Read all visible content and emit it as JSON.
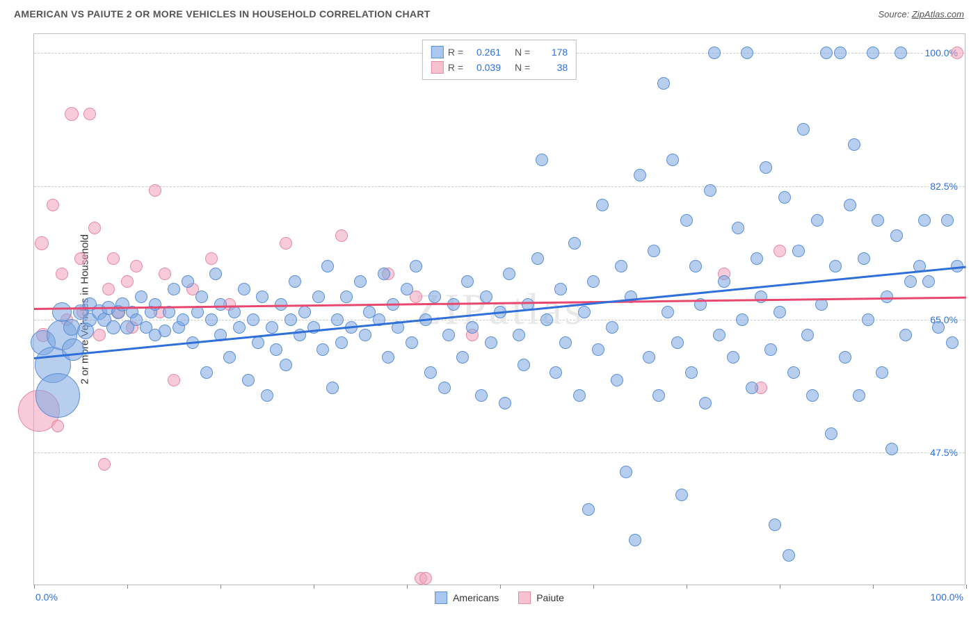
{
  "header": {
    "title": "AMERICAN VS PAIUTE 2 OR MORE VEHICLES IN HOUSEHOLD CORRELATION CHART",
    "source_prefix": "Source: ",
    "source_name": "ZipAtlas.com"
  },
  "watermark": "ZIPatlas",
  "yaxis": {
    "label": "2 or more Vehicles in Household",
    "ticks": [
      {
        "value": 47.5,
        "label": "47.5%"
      },
      {
        "value": 65.0,
        "label": "65.0%"
      },
      {
        "value": 82.5,
        "label": "82.5%"
      },
      {
        "value": 100.0,
        "label": "100.0%"
      }
    ],
    "min": 30.0,
    "max": 102.5
  },
  "xaxis": {
    "min": 0.0,
    "max": 100.0,
    "min_label": "0.0%",
    "max_label": "100.0%",
    "tick_positions": [
      0,
      10,
      20,
      30,
      40,
      50,
      60,
      70,
      80,
      90,
      100
    ]
  },
  "legend_top": {
    "rows": [
      {
        "swatch_fill": "#a9c7ef",
        "swatch_border": "#5b8fd6",
        "r_label": "R =",
        "r_value": "0.261",
        "n_label": "N =",
        "n_value": "178"
      },
      {
        "swatch_fill": "#f7c2cf",
        "swatch_border": "#e68aa3",
        "r_label": "R =",
        "r_value": "0.039",
        "n_label": "N =",
        "n_value": "38"
      }
    ]
  },
  "legend_bottom": {
    "items": [
      {
        "swatch_fill": "#a9c7ef",
        "swatch_border": "#5b8fd6",
        "label": "Americans"
      },
      {
        "swatch_fill": "#f7c2cf",
        "swatch_border": "#e68aa3",
        "label": "Paiute"
      }
    ]
  },
  "series": {
    "americans": {
      "color_fill": "rgba(123,166,224,0.55)",
      "color_stroke": "#5b8fd6",
      "trend": {
        "color": "#2e6fd9",
        "y_at_xmin": 60.0,
        "y_at_xmax": 72.0
      },
      "points": [
        {
          "x": 1,
          "y": 62,
          "r": 18
        },
        {
          "x": 2,
          "y": 59,
          "r": 26
        },
        {
          "x": 2.5,
          "y": 55,
          "r": 32
        },
        {
          "x": 3,
          "y": 63,
          "r": 22
        },
        {
          "x": 3,
          "y": 66,
          "r": 14
        },
        {
          "x": 4,
          "y": 64,
          "r": 12
        },
        {
          "x": 4.2,
          "y": 61,
          "r": 16
        },
        {
          "x": 5,
          "y": 66,
          "r": 11
        },
        {
          "x": 5.5,
          "y": 63.5,
          "r": 12
        },
        {
          "x": 6,
          "y": 67,
          "r": 10
        },
        {
          "x": 6,
          "y": 65,
          "r": 10
        },
        {
          "x": 7,
          "y": 66,
          "r": 11
        },
        {
          "x": 7.5,
          "y": 65,
          "r": 10
        },
        {
          "x": 8,
          "y": 66.5,
          "r": 10
        },
        {
          "x": 8.5,
          "y": 64,
          "r": 10
        },
        {
          "x": 9,
          "y": 66,
          "r": 10
        },
        {
          "x": 9.5,
          "y": 67,
          "r": 10
        },
        {
          "x": 10,
          "y": 64,
          "r": 10
        },
        {
          "x": 10.5,
          "y": 66,
          "r": 9
        },
        {
          "x": 11,
          "y": 65,
          "r": 9
        },
        {
          "x": 11.5,
          "y": 68,
          "r": 9
        },
        {
          "x": 12,
          "y": 64,
          "r": 9
        },
        {
          "x": 12.5,
          "y": 66,
          "r": 9
        },
        {
          "x": 13,
          "y": 63,
          "r": 9
        },
        {
          "x": 13,
          "y": 67,
          "r": 9
        },
        {
          "x": 14,
          "y": 63.5,
          "r": 9
        },
        {
          "x": 14.5,
          "y": 66,
          "r": 9
        },
        {
          "x": 15,
          "y": 69,
          "r": 9
        },
        {
          "x": 15.5,
          "y": 64,
          "r": 9
        },
        {
          "x": 16,
          "y": 65,
          "r": 9
        },
        {
          "x": 16.5,
          "y": 70,
          "r": 9
        },
        {
          "x": 17,
          "y": 62,
          "r": 9
        },
        {
          "x": 17.5,
          "y": 66,
          "r": 9
        },
        {
          "x": 18,
          "y": 68,
          "r": 9
        },
        {
          "x": 18.5,
          "y": 58,
          "r": 9
        },
        {
          "x": 19,
          "y": 65,
          "r": 9
        },
        {
          "x": 19.5,
          "y": 71,
          "r": 9
        },
        {
          "x": 20,
          "y": 67,
          "r": 9
        },
        {
          "x": 20,
          "y": 63,
          "r": 9
        },
        {
          "x": 21,
          "y": 60,
          "r": 9
        },
        {
          "x": 21.5,
          "y": 66,
          "r": 9
        },
        {
          "x": 22,
          "y": 64,
          "r": 9
        },
        {
          "x": 22.5,
          "y": 69,
          "r": 9
        },
        {
          "x": 23,
          "y": 57,
          "r": 9
        },
        {
          "x": 23.5,
          "y": 65,
          "r": 9
        },
        {
          "x": 24,
          "y": 62,
          "r": 9
        },
        {
          "x": 24.5,
          "y": 68,
          "r": 9
        },
        {
          "x": 25,
          "y": 55,
          "r": 9
        },
        {
          "x": 25.5,
          "y": 64,
          "r": 9
        },
        {
          "x": 26,
          "y": 61,
          "r": 9
        },
        {
          "x": 26.5,
          "y": 67,
          "r": 9
        },
        {
          "x": 27,
          "y": 59,
          "r": 9
        },
        {
          "x": 27.5,
          "y": 65,
          "r": 9
        },
        {
          "x": 28,
          "y": 70,
          "r": 9
        },
        {
          "x": 28.5,
          "y": 63,
          "r": 9
        },
        {
          "x": 29,
          "y": 66,
          "r": 9
        },
        {
          "x": 30,
          "y": 64,
          "r": 9
        },
        {
          "x": 30.5,
          "y": 68,
          "r": 9
        },
        {
          "x": 31,
          "y": 61,
          "r": 9
        },
        {
          "x": 31.5,
          "y": 72,
          "r": 9
        },
        {
          "x": 32,
          "y": 56,
          "r": 9
        },
        {
          "x": 32.5,
          "y": 65,
          "r": 9
        },
        {
          "x": 33,
          "y": 62,
          "r": 9
        },
        {
          "x": 33.5,
          "y": 68,
          "r": 9
        },
        {
          "x": 34,
          "y": 64,
          "r": 9
        },
        {
          "x": 35,
          "y": 70,
          "r": 9
        },
        {
          "x": 35.5,
          "y": 63,
          "r": 9
        },
        {
          "x": 36,
          "y": 66,
          "r": 9
        },
        {
          "x": 37,
          "y": 65,
          "r": 9
        },
        {
          "x": 37.5,
          "y": 71,
          "r": 9
        },
        {
          "x": 38,
          "y": 60,
          "r": 9
        },
        {
          "x": 38.5,
          "y": 67,
          "r": 9
        },
        {
          "x": 39,
          "y": 64,
          "r": 9
        },
        {
          "x": 40,
          "y": 69,
          "r": 9
        },
        {
          "x": 40.5,
          "y": 62,
          "r": 9
        },
        {
          "x": 41,
          "y": 72,
          "r": 9
        },
        {
          "x": 42,
          "y": 65,
          "r": 9
        },
        {
          "x": 42.5,
          "y": 58,
          "r": 9
        },
        {
          "x": 43,
          "y": 68,
          "r": 9
        },
        {
          "x": 44,
          "y": 56,
          "r": 9
        },
        {
          "x": 44.5,
          "y": 63,
          "r": 9
        },
        {
          "x": 45,
          "y": 67,
          "r": 9
        },
        {
          "x": 46,
          "y": 60,
          "r": 9
        },
        {
          "x": 46.5,
          "y": 70,
          "r": 9
        },
        {
          "x": 47,
          "y": 64,
          "r": 9
        },
        {
          "x": 48,
          "y": 55,
          "r": 9
        },
        {
          "x": 48.5,
          "y": 68,
          "r": 9
        },
        {
          "x": 49,
          "y": 62,
          "r": 9
        },
        {
          "x": 50,
          "y": 66,
          "r": 9
        },
        {
          "x": 50.5,
          "y": 54,
          "r": 9
        },
        {
          "x": 51,
          "y": 71,
          "r": 9
        },
        {
          "x": 52,
          "y": 63,
          "r": 9
        },
        {
          "x": 52.5,
          "y": 59,
          "r": 9
        },
        {
          "x": 53,
          "y": 67,
          "r": 9
        },
        {
          "x": 54,
          "y": 73,
          "r": 9
        },
        {
          "x": 54.5,
          "y": 86,
          "r": 9
        },
        {
          "x": 55,
          "y": 65,
          "r": 9
        },
        {
          "x": 56,
          "y": 58,
          "r": 9
        },
        {
          "x": 56.5,
          "y": 69,
          "r": 9
        },
        {
          "x": 57,
          "y": 62,
          "r": 9
        },
        {
          "x": 58,
          "y": 75,
          "r": 9
        },
        {
          "x": 58.5,
          "y": 55,
          "r": 9
        },
        {
          "x": 59,
          "y": 66,
          "r": 9
        },
        {
          "x": 59.5,
          "y": 40,
          "r": 9
        },
        {
          "x": 60,
          "y": 70,
          "r": 9
        },
        {
          "x": 60.5,
          "y": 61,
          "r": 9
        },
        {
          "x": 61,
          "y": 80,
          "r": 9
        },
        {
          "x": 62,
          "y": 64,
          "r": 9
        },
        {
          "x": 62.5,
          "y": 57,
          "r": 9
        },
        {
          "x": 63,
          "y": 72,
          "r": 9
        },
        {
          "x": 63.5,
          "y": 45,
          "r": 9
        },
        {
          "x": 64,
          "y": 68,
          "r": 9
        },
        {
          "x": 64.5,
          "y": 36,
          "r": 9
        },
        {
          "x": 65,
          "y": 84,
          "r": 9
        },
        {
          "x": 66,
          "y": 60,
          "r": 9
        },
        {
          "x": 66.5,
          "y": 74,
          "r": 9
        },
        {
          "x": 67,
          "y": 55,
          "r": 9
        },
        {
          "x": 67.5,
          "y": 96,
          "r": 9
        },
        {
          "x": 68,
          "y": 66,
          "r": 9
        },
        {
          "x": 68.5,
          "y": 86,
          "r": 9
        },
        {
          "x": 69,
          "y": 62,
          "r": 9
        },
        {
          "x": 69.5,
          "y": 42,
          "r": 9
        },
        {
          "x": 70,
          "y": 78,
          "r": 9
        },
        {
          "x": 70.5,
          "y": 58,
          "r": 9
        },
        {
          "x": 71,
          "y": 72,
          "r": 9
        },
        {
          "x": 71.5,
          "y": 67,
          "r": 9
        },
        {
          "x": 72,
          "y": 54,
          "r": 9
        },
        {
          "x": 72.5,
          "y": 82,
          "r": 9
        },
        {
          "x": 73,
          "y": 100,
          "r": 9
        },
        {
          "x": 73.5,
          "y": 63,
          "r": 9
        },
        {
          "x": 74,
          "y": 70,
          "r": 9
        },
        {
          "x": 75,
          "y": 60,
          "r": 9
        },
        {
          "x": 75.5,
          "y": 77,
          "r": 9
        },
        {
          "x": 76,
          "y": 65,
          "r": 9
        },
        {
          "x": 76.5,
          "y": 100,
          "r": 9
        },
        {
          "x": 77,
          "y": 56,
          "r": 9
        },
        {
          "x": 77.5,
          "y": 73,
          "r": 9
        },
        {
          "x": 78,
          "y": 68,
          "r": 9
        },
        {
          "x": 78.5,
          "y": 85,
          "r": 9
        },
        {
          "x": 79,
          "y": 61,
          "r": 9
        },
        {
          "x": 79.5,
          "y": 38,
          "r": 9
        },
        {
          "x": 80,
          "y": 66,
          "r": 9
        },
        {
          "x": 80.5,
          "y": 81,
          "r": 9
        },
        {
          "x": 81,
          "y": 34,
          "r": 9
        },
        {
          "x": 81.5,
          "y": 58,
          "r": 9
        },
        {
          "x": 82,
          "y": 74,
          "r": 9
        },
        {
          "x": 82.5,
          "y": 90,
          "r": 9
        },
        {
          "x": 83,
          "y": 63,
          "r": 9
        },
        {
          "x": 83.5,
          "y": 55,
          "r": 9
        },
        {
          "x": 84,
          "y": 78,
          "r": 9
        },
        {
          "x": 84.5,
          "y": 67,
          "r": 9
        },
        {
          "x": 85,
          "y": 100,
          "r": 9
        },
        {
          "x": 85.5,
          "y": 50,
          "r": 9
        },
        {
          "x": 86,
          "y": 72,
          "r": 9
        },
        {
          "x": 86.5,
          "y": 100,
          "r": 9
        },
        {
          "x": 87,
          "y": 60,
          "r": 9
        },
        {
          "x": 87.5,
          "y": 80,
          "r": 9
        },
        {
          "x": 88,
          "y": 88,
          "r": 9
        },
        {
          "x": 88.5,
          "y": 55,
          "r": 9
        },
        {
          "x": 89,
          "y": 73,
          "r": 9
        },
        {
          "x": 89.5,
          "y": 65,
          "r": 9
        },
        {
          "x": 90,
          "y": 100,
          "r": 9
        },
        {
          "x": 90.5,
          "y": 78,
          "r": 9
        },
        {
          "x": 91,
          "y": 58,
          "r": 9
        },
        {
          "x": 91.5,
          "y": 68,
          "r": 9
        },
        {
          "x": 92,
          "y": 48,
          "r": 9
        },
        {
          "x": 92.5,
          "y": 76,
          "r": 9
        },
        {
          "x": 93,
          "y": 100,
          "r": 9
        },
        {
          "x": 93.5,
          "y": 63,
          "r": 9
        },
        {
          "x": 94,
          "y": 70,
          "r": 9
        },
        {
          "x": 95,
          "y": 72,
          "r": 9
        },
        {
          "x": 95.5,
          "y": 78,
          "r": 9
        },
        {
          "x": 96,
          "y": 70,
          "r": 9
        },
        {
          "x": 97,
          "y": 64,
          "r": 9
        },
        {
          "x": 98,
          "y": 78,
          "r": 9
        },
        {
          "x": 98.5,
          "y": 62,
          "r": 9
        },
        {
          "x": 99,
          "y": 72,
          "r": 9
        }
      ]
    },
    "paiute": {
      "color_fill": "rgba(240,160,185,0.55)",
      "color_stroke": "#e68aa3",
      "trend": {
        "color": "#e8486f",
        "y_at_xmin": 66.5,
        "y_at_xmax": 68.0
      },
      "points": [
        {
          "x": 0.5,
          "y": 53,
          "r": 30
        },
        {
          "x": 0.8,
          "y": 75,
          "r": 10
        },
        {
          "x": 1,
          "y": 63,
          "r": 10
        },
        {
          "x": 2,
          "y": 80,
          "r": 9
        },
        {
          "x": 2.5,
          "y": 51,
          "r": 9
        },
        {
          "x": 3,
          "y": 71,
          "r": 9
        },
        {
          "x": 3.5,
          "y": 65,
          "r": 9
        },
        {
          "x": 4,
          "y": 92,
          "r": 10
        },
        {
          "x": 5,
          "y": 73,
          "r": 9
        },
        {
          "x": 5.2,
          "y": 66,
          "r": 9
        },
        {
          "x": 6,
          "y": 92,
          "r": 9
        },
        {
          "x": 6.5,
          "y": 77,
          "r": 9
        },
        {
          "x": 7,
          "y": 63,
          "r": 9
        },
        {
          "x": 7.5,
          "y": 46,
          "r": 9
        },
        {
          "x": 8,
          "y": 69,
          "r": 9
        },
        {
          "x": 8.5,
          "y": 73,
          "r": 9
        },
        {
          "x": 9,
          "y": 66,
          "r": 9
        },
        {
          "x": 10,
          "y": 70,
          "r": 9
        },
        {
          "x": 10.5,
          "y": 64,
          "r": 9
        },
        {
          "x": 11,
          "y": 72,
          "r": 9
        },
        {
          "x": 13,
          "y": 82,
          "r": 9
        },
        {
          "x": 13.5,
          "y": 66,
          "r": 9
        },
        {
          "x": 14,
          "y": 71,
          "r": 9
        },
        {
          "x": 15,
          "y": 57,
          "r": 9
        },
        {
          "x": 17,
          "y": 69,
          "r": 9
        },
        {
          "x": 19,
          "y": 73,
          "r": 9
        },
        {
          "x": 21,
          "y": 67,
          "r": 9
        },
        {
          "x": 27,
          "y": 75,
          "r": 9
        },
        {
          "x": 33,
          "y": 76,
          "r": 9
        },
        {
          "x": 38,
          "y": 71,
          "r": 9
        },
        {
          "x": 41,
          "y": 68,
          "r": 9
        },
        {
          "x": 41.5,
          "y": 31,
          "r": 9
        },
        {
          "x": 42,
          "y": 31,
          "r": 9
        },
        {
          "x": 47,
          "y": 63,
          "r": 9
        },
        {
          "x": 74,
          "y": 71,
          "r": 9
        },
        {
          "x": 78,
          "y": 56,
          "r": 9
        },
        {
          "x": 80,
          "y": 74,
          "r": 9
        },
        {
          "x": 99,
          "y": 100,
          "r": 9
        }
      ]
    }
  }
}
